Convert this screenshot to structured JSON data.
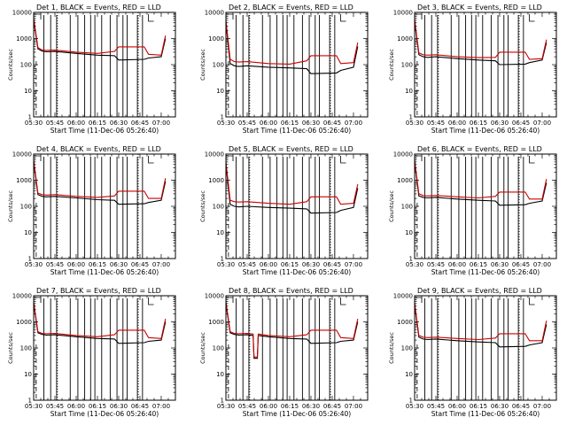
{
  "chart_data": [
    {
      "type": "line",
      "title": "Det 1, BLACK = Events, RED = LLD",
      "xlabel": "Start Time (11-Dec-06 05:26:40)",
      "ylabel": "Counts/sec",
      "x_ticks": [
        "05:30",
        "05:45",
        "06:00",
        "06:15",
        "06:30",
        "06:45",
        "07:00"
      ],
      "y_ticks": [
        "1",
        "10",
        "100",
        "1000",
        "10000"
      ],
      "y_log": true,
      "ylim": [
        1,
        10000
      ],
      "series": [
        {
          "color": "#000000",
          "x": [
            5.5,
            5.55,
            5.6,
            5.65,
            5.75,
            6.0,
            6.25,
            6.45,
            6.5,
            6.8,
            6.85,
            7.0,
            7.05
          ],
          "values": [
            5000,
            400,
            330,
            310,
            320,
            270,
            230,
            220,
            150,
            160,
            180,
            200,
            1000
          ]
        },
        {
          "color": "#cc0000",
          "x": [
            5.5,
            5.55,
            5.6,
            5.65,
            5.75,
            6.0,
            6.25,
            6.45,
            6.5,
            6.8,
            6.85,
            7.0,
            7.05
          ],
          "values": [
            6000,
            450,
            360,
            350,
            360,
            300,
            270,
            320,
            480,
            480,
            250,
            230,
            1300
          ]
        }
      ]
    },
    {
      "type": "line",
      "title": "Det 2, BLACK = Events, RED = LLD",
      "xlabel": "Start Time (11-Dec-06 05:26:40)",
      "ylabel": "Counts/sec",
      "x_ticks": [
        "05:30",
        "05:45",
        "06:00",
        "06:15",
        "06:30",
        "06:45",
        "07:00"
      ],
      "y_ticks": [
        "1",
        "10",
        "100",
        "1000",
        "10000"
      ],
      "y_log": true,
      "ylim": [
        1,
        10000
      ],
      "series": [
        {
          "color": "#000000",
          "x": [
            5.5,
            5.55,
            5.6,
            5.65,
            5.75,
            6.0,
            6.25,
            6.45,
            6.5,
            6.8,
            6.85,
            7.0,
            7.05
          ],
          "values": [
            4000,
            110,
            90,
            85,
            90,
            80,
            75,
            70,
            45,
            48,
            60,
            80,
            500
          ]
        },
        {
          "color": "#cc0000",
          "x": [
            5.5,
            5.55,
            5.6,
            5.65,
            5.75,
            6.0,
            6.25,
            6.45,
            6.5,
            6.8,
            6.85,
            7.0,
            7.05
          ],
          "values": [
            5000,
            160,
            130,
            125,
            130,
            110,
            105,
            140,
            220,
            220,
            110,
            120,
            700
          ]
        }
      ]
    },
    {
      "type": "line",
      "title": "Det 3, BLACK = Events, RED = LLD",
      "xlabel": "Start Time (11-Dec-06 05:26:40)",
      "ylabel": "Counts/sec",
      "x_ticks": [
        "05:30",
        "05:45",
        "06:00",
        "06:15",
        "06:30",
        "06:45",
        "07:00"
      ],
      "y_ticks": [
        "1",
        "10",
        "100",
        "1000",
        "10000"
      ],
      "y_log": true,
      "ylim": [
        1,
        10000
      ],
      "series": [
        {
          "color": "#000000",
          "x": [
            5.5,
            5.55,
            5.6,
            5.65,
            5.75,
            6.0,
            6.25,
            6.45,
            6.5,
            6.8,
            6.85,
            7.0,
            7.05
          ],
          "values": [
            4500,
            240,
            200,
            190,
            200,
            170,
            150,
            140,
            100,
            105,
            120,
            150,
            700
          ]
        },
        {
          "color": "#cc0000",
          "x": [
            5.5,
            5.55,
            5.6,
            5.65,
            5.75,
            6.0,
            6.25,
            6.45,
            6.5,
            6.8,
            6.85,
            7.0,
            7.05
          ],
          "values": [
            5500,
            280,
            240,
            230,
            240,
            200,
            185,
            190,
            300,
            300,
            160,
            170,
            900
          ]
        }
      ]
    },
    {
      "type": "line",
      "title": "Det 4, BLACK = Events, RED = LLD",
      "xlabel": "Start Time (11-Dec-06 05:26:40)",
      "ylabel": "Counts/sec",
      "x_ticks": [
        "05:30",
        "05:45",
        "06:00",
        "06:15",
        "06:30",
        "06:45",
        "07:00"
      ],
      "y_ticks": [
        "1",
        "10",
        "100",
        "1000",
        "10000"
      ],
      "y_log": true,
      "ylim": [
        1,
        10000
      ],
      "series": [
        {
          "color": "#000000",
          "x": [
            5.5,
            5.55,
            5.6,
            5.65,
            5.75,
            6.0,
            6.25,
            6.45,
            6.5,
            6.8,
            6.85,
            7.0,
            7.05
          ],
          "values": [
            5000,
            280,
            240,
            230,
            240,
            210,
            180,
            170,
            120,
            125,
            140,
            170,
            900
          ]
        },
        {
          "color": "#cc0000",
          "x": [
            5.5,
            5.55,
            5.6,
            5.65,
            5.75,
            6.0,
            6.25,
            6.45,
            6.5,
            6.8,
            6.85,
            7.0,
            7.05
          ],
          "values": [
            6000,
            320,
            280,
            270,
            280,
            240,
            220,
            250,
            380,
            380,
            200,
            200,
            1200
          ]
        }
      ]
    },
    {
      "type": "line",
      "title": "Det 5, BLACK = Events, RED = LLD",
      "xlabel": "Start Time (11-Dec-06 05:26:40)",
      "ylabel": "Counts/sec",
      "x_ticks": [
        "05:30",
        "05:45",
        "06:00",
        "06:15",
        "06:30",
        "06:45",
        "07:00"
      ],
      "y_ticks": [
        "1",
        "10",
        "100",
        "1000",
        "10000"
      ],
      "y_log": true,
      "ylim": [
        1,
        10000
      ],
      "series": [
        {
          "color": "#000000",
          "x": [
            5.5,
            5.55,
            5.6,
            5.65,
            5.75,
            6.0,
            6.25,
            6.45,
            6.5,
            6.8,
            6.85,
            7.0,
            7.05
          ],
          "values": [
            4000,
            120,
            100,
            95,
            100,
            90,
            85,
            80,
            55,
            58,
            70,
            90,
            500
          ]
        },
        {
          "color": "#cc0000",
          "x": [
            5.5,
            5.55,
            5.6,
            5.65,
            5.75,
            6.0,
            6.25,
            6.45,
            6.5,
            6.8,
            6.85,
            7.0,
            7.05
          ],
          "values": [
            5000,
            170,
            150,
            145,
            150,
            130,
            120,
            150,
            230,
            230,
            120,
            130,
            700
          ]
        }
      ]
    },
    {
      "type": "line",
      "title": "Det 6, BLACK = Events, RED = LLD",
      "xlabel": "Start Time (11-Dec-06 05:26:40)",
      "ylabel": "Counts/sec",
      "x_ticks": [
        "05:30",
        "05:45",
        "06:00",
        "06:15",
        "06:30",
        "06:45",
        "07:00"
      ],
      "y_ticks": [
        "1",
        "10",
        "100",
        "1000",
        "10000"
      ],
      "y_log": true,
      "ylim": [
        1,
        10000
      ],
      "series": [
        {
          "color": "#000000",
          "x": [
            5.5,
            5.55,
            5.6,
            5.65,
            5.75,
            6.0,
            6.25,
            6.45,
            6.5,
            6.8,
            6.85,
            7.0,
            7.05
          ],
          "values": [
            5000,
            250,
            220,
            210,
            220,
            190,
            170,
            160,
            110,
            115,
            130,
            160,
            800
          ]
        },
        {
          "color": "#cc0000",
          "x": [
            5.5,
            5.55,
            5.6,
            5.65,
            5.75,
            6.0,
            6.25,
            6.45,
            6.5,
            6.8,
            6.85,
            7.0,
            7.05
          ],
          "values": [
            6000,
            300,
            260,
            250,
            260,
            230,
            210,
            240,
            350,
            350,
            190,
            190,
            1100
          ]
        }
      ]
    },
    {
      "type": "line",
      "title": "Det 7, BLACK = Events, RED = LLD",
      "xlabel": "Start Time (11-Dec-06 05:26:40)",
      "ylabel": "Counts/sec",
      "x_ticks": [
        "05:30",
        "05:45",
        "06:00",
        "06:15",
        "06:30",
        "06:45",
        "07:00"
      ],
      "y_ticks": [
        "1",
        "10",
        "100",
        "1000",
        "10000"
      ],
      "y_log": true,
      "ylim": [
        1,
        10000
      ],
      "series": [
        {
          "color": "#000000",
          "x": [
            5.5,
            5.55,
            5.6,
            5.65,
            5.75,
            6.0,
            6.25,
            6.45,
            6.5,
            6.8,
            6.85,
            7.0,
            7.05
          ],
          "values": [
            5000,
            380,
            330,
            310,
            320,
            270,
            230,
            220,
            150,
            160,
            180,
            200,
            1000
          ]
        },
        {
          "color": "#cc0000",
          "x": [
            5.5,
            5.55,
            5.6,
            5.65,
            5.75,
            6.0,
            6.25,
            6.45,
            6.5,
            6.8,
            6.85,
            7.0,
            7.05
          ],
          "values": [
            6000,
            420,
            360,
            350,
            360,
            300,
            270,
            320,
            480,
            480,
            250,
            230,
            1300
          ]
        }
      ]
    },
    {
      "type": "line",
      "title": "Det 8, BLACK = Events, RED = LLD",
      "xlabel": "Start Time (11-Dec-06 05:26:40)",
      "ylabel": "Counts/sec",
      "x_ticks": [
        "05:30",
        "05:45",
        "06:00",
        "06:15",
        "06:30",
        "06:45",
        "07:00"
      ],
      "y_ticks": [
        "1",
        "10",
        "100",
        "1000",
        "10000"
      ],
      "y_log": true,
      "ylim": [
        1,
        10000
      ],
      "series": [
        {
          "color": "#000000",
          "x": [
            5.5,
            5.55,
            5.6,
            5.65,
            5.75,
            5.82,
            5.83,
            5.87,
            5.88,
            6.0,
            6.25,
            6.45,
            6.5,
            6.8,
            6.85,
            7.0,
            7.05
          ],
          "values": [
            5000,
            380,
            330,
            310,
            320,
            300,
            40,
            40,
            300,
            270,
            230,
            220,
            150,
            160,
            180,
            200,
            1000
          ]
        },
        {
          "color": "#cc0000",
          "x": [
            5.5,
            5.55,
            5.6,
            5.65,
            5.75,
            5.82,
            5.83,
            5.87,
            5.88,
            6.0,
            6.25,
            6.45,
            6.5,
            6.8,
            6.85,
            7.0,
            7.05
          ],
          "values": [
            6000,
            420,
            360,
            350,
            360,
            340,
            45,
            45,
            340,
            300,
            270,
            320,
            480,
            480,
            250,
            230,
            1300
          ]
        }
      ]
    },
    {
      "type": "line",
      "title": "Det 9, BLACK = Events, RED = LLD",
      "xlabel": "Start Time (11-Dec-06 05:26:40)",
      "ylabel": "Counts/sec",
      "x_ticks": [
        "05:30",
        "05:45",
        "06:00",
        "06:15",
        "06:30",
        "06:45",
        "07:00"
      ],
      "y_ticks": [
        "1",
        "10",
        "100",
        "1000",
        "10000"
      ],
      "y_log": true,
      "ylim": [
        1,
        10000
      ],
      "series": [
        {
          "color": "#000000",
          "x": [
            5.5,
            5.55,
            5.6,
            5.65,
            5.75,
            6.0,
            6.25,
            6.45,
            6.5,
            6.8,
            6.85,
            7.0,
            7.05
          ],
          "values": [
            4500,
            260,
            220,
            210,
            220,
            190,
            170,
            160,
            110,
            115,
            130,
            160,
            800
          ]
        },
        {
          "color": "#cc0000",
          "x": [
            5.5,
            5.55,
            5.6,
            5.65,
            5.75,
            6.0,
            6.25,
            6.45,
            6.5,
            6.8,
            6.85,
            7.0,
            7.05
          ],
          "values": [
            5500,
            300,
            260,
            250,
            260,
            230,
            210,
            240,
            350,
            350,
            190,
            190,
            1100
          ]
        }
      ]
    }
  ]
}
